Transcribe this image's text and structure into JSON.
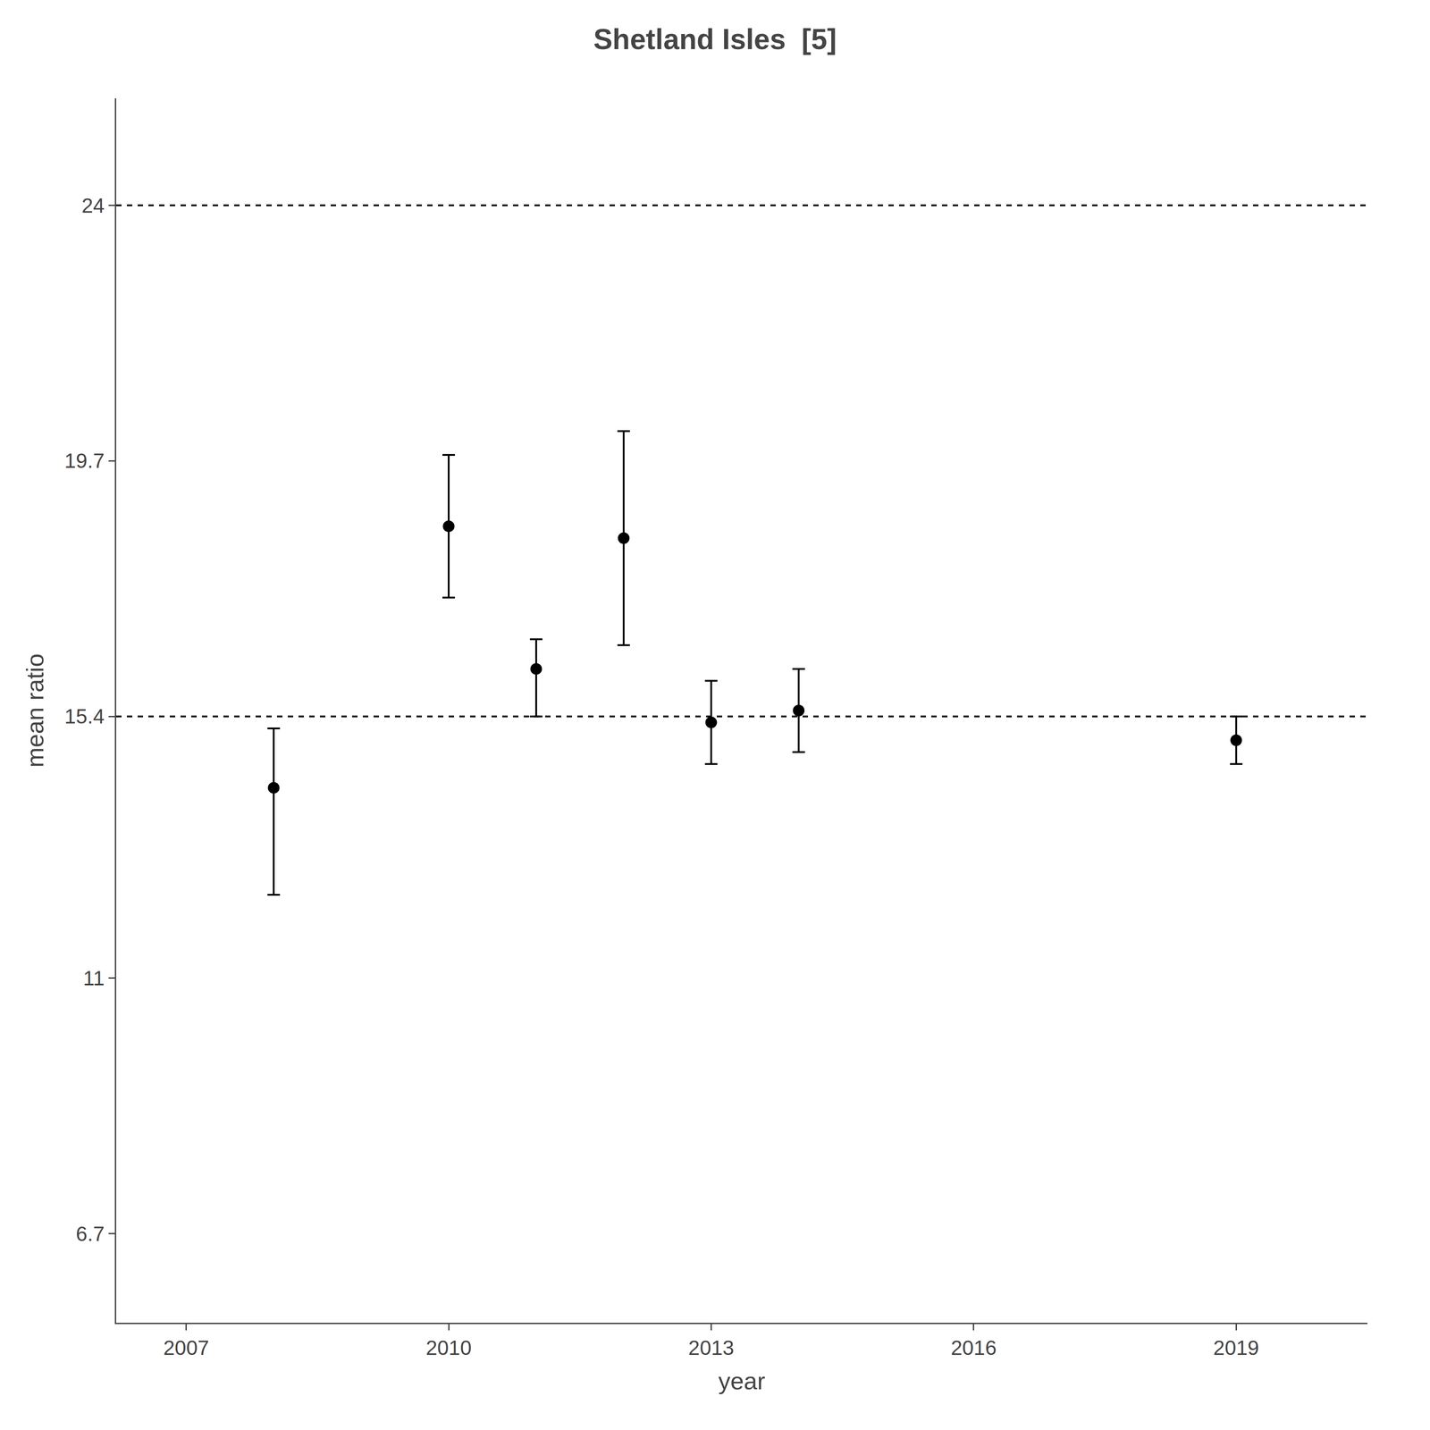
{
  "chart_data": {
    "type": "scatter",
    "title": "Shetland Isles  [5]",
    "xlabel": "year",
    "ylabel": "mean ratio",
    "x": [
      2008,
      2010,
      2011,
      2012,
      2013,
      2014,
      2019
    ],
    "values": [
      14.2,
      18.6,
      16.2,
      18.4,
      15.3,
      15.5,
      15.0
    ],
    "error_minus": [
      1.8,
      1.2,
      0.8,
      1.8,
      0.7,
      0.7,
      0.4
    ],
    "error_plus": [
      1.0,
      1.2,
      0.5,
      1.8,
      0.7,
      0.7,
      0.4
    ],
    "color": "black",
    "marker": "circle",
    "hlines": [
      24,
      15.4
    ],
    "xlim": [
      2006.2,
      2020.5
    ],
    "xticks": [
      2007,
      2010,
      2013,
      2016,
      2019
    ],
    "ylim": [
      5.2,
      25.8
    ],
    "yticks": [
      6.7,
      11,
      15.4,
      19.7,
      24
    ],
    "grid": false
  }
}
